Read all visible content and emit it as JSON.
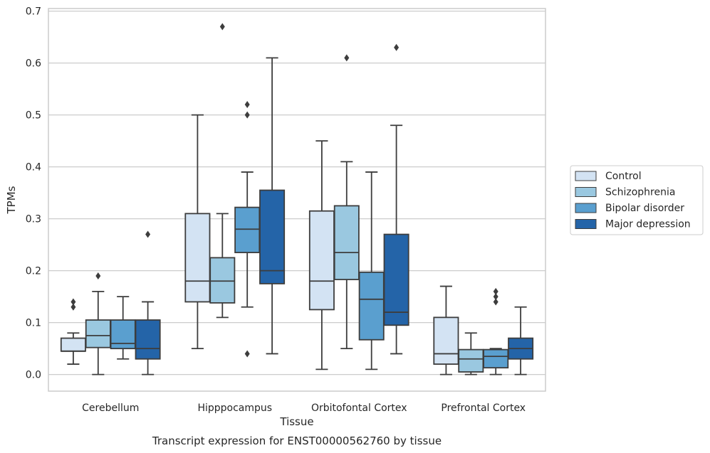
{
  "caption": "Transcript expression for ENST00000562760 by tissue",
  "chart_data": {
    "type": "box",
    "xlabel": "Tissue",
    "ylabel": "TPMs",
    "ylim": [
      -0.032,
      0.705
    ],
    "yticks": [
      "0.0",
      "0.1",
      "0.2",
      "0.3",
      "0.4",
      "0.5",
      "0.6",
      "0.7"
    ],
    "grid": "horizontal",
    "legend_position": "right",
    "categories": [
      "Cerebellum",
      "Hipppocampus",
      "Orbitofontal Cortex",
      "Prefrontal Cortex"
    ],
    "series": [
      {
        "name": "Control",
        "color": "#d3e3f3",
        "boxes": [
          {
            "whislo": 0.02,
            "q1": 0.045,
            "med": 0.045,
            "q3": 0.07,
            "whishi": 0.08,
            "fliers": [
              0.13,
              0.14
            ]
          },
          {
            "whislo": 0.05,
            "q1": 0.14,
            "med": 0.18,
            "q3": 0.31,
            "whishi": 0.5,
            "fliers": []
          },
          {
            "whislo": 0.01,
            "q1": 0.125,
            "med": 0.18,
            "q3": 0.315,
            "whishi": 0.45,
            "fliers": []
          },
          {
            "whislo": 0.0,
            "q1": 0.02,
            "med": 0.04,
            "q3": 0.11,
            "whishi": 0.17,
            "fliers": []
          }
        ]
      },
      {
        "name": "Schizophrenia",
        "color": "#9ac8e0",
        "boxes": [
          {
            "whislo": 0.0,
            "q1": 0.052,
            "med": 0.075,
            "q3": 0.105,
            "whishi": 0.16,
            "fliers": [
              0.19
            ]
          },
          {
            "whislo": 0.11,
            "q1": 0.138,
            "med": 0.18,
            "q3": 0.225,
            "whishi": 0.31,
            "fliers": [
              0.67
            ]
          },
          {
            "whislo": 0.05,
            "q1": 0.183,
            "med": 0.235,
            "q3": 0.325,
            "whishi": 0.41,
            "fliers": [
              0.61
            ]
          },
          {
            "whislo": 0.0,
            "q1": 0.005,
            "med": 0.03,
            "q3": 0.048,
            "whishi": 0.08,
            "fliers": []
          }
        ]
      },
      {
        "name": "Bipolar disorder",
        "color": "#5a9fcf",
        "boxes": [
          {
            "whislo": 0.03,
            "q1": 0.05,
            "med": 0.06,
            "q3": 0.105,
            "whishi": 0.15,
            "fliers": []
          },
          {
            "whislo": 0.13,
            "q1": 0.235,
            "med": 0.28,
            "q3": 0.322,
            "whishi": 0.39,
            "fliers": [
              0.04,
              0.5,
              0.52
            ]
          },
          {
            "whislo": 0.01,
            "q1": 0.067,
            "med": 0.145,
            "q3": 0.197,
            "whishi": 0.39,
            "fliers": []
          },
          {
            "whislo": 0.0,
            "q1": 0.013,
            "med": 0.035,
            "q3": 0.048,
            "whishi": 0.05,
            "fliers": [
              0.14,
              0.15,
              0.16
            ]
          }
        ]
      },
      {
        "name": "Major depression",
        "color": "#2464a8",
        "boxes": [
          {
            "whislo": 0.0,
            "q1": 0.03,
            "med": 0.05,
            "q3": 0.105,
            "whishi": 0.14,
            "fliers": [
              0.27
            ]
          },
          {
            "whislo": 0.04,
            "q1": 0.175,
            "med": 0.2,
            "q3": 0.355,
            "whishi": 0.61,
            "fliers": []
          },
          {
            "whislo": 0.04,
            "q1": 0.095,
            "med": 0.12,
            "q3": 0.27,
            "whishi": 0.48,
            "fliers": [
              0.63
            ]
          },
          {
            "whislo": 0.0,
            "q1": 0.03,
            "med": 0.05,
            "q3": 0.07,
            "whishi": 0.13,
            "fliers": []
          }
        ]
      }
    ]
  }
}
